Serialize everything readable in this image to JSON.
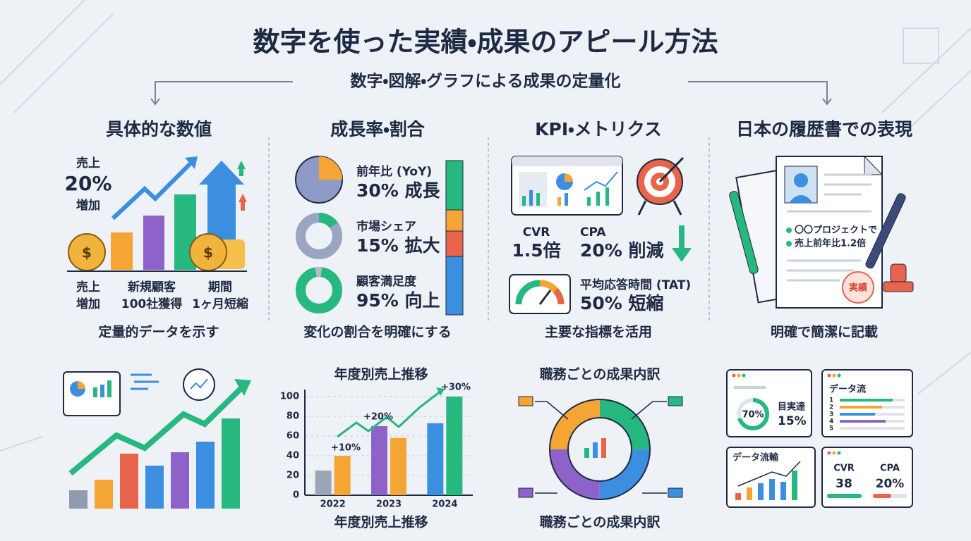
{
  "header": {
    "title": "数字を使った実績・成果のアピール方法",
    "subtitle": "数字・図解・グラフによる成果の定量化"
  },
  "sections": [
    {
      "title": "具体的な数値",
      "highlight": [
        "売上",
        "20%",
        "増加"
      ],
      "labels": [
        [
          "売上",
          "増加"
        ],
        [
          "新規顧客",
          "100社獲得"
        ],
        [
          "期間",
          "1ヶ月短縮"
        ]
      ],
      "caption": "定量的データを示す"
    },
    {
      "title": "成長率・割合",
      "items": [
        {
          "label": "前年比 (YoY)",
          "value": "30% 成長"
        },
        {
          "label": "市場シェア",
          "value": "15% 拡大"
        },
        {
          "label": "顧客満足度",
          "value": "95% 向上"
        }
      ],
      "caption": "変化の割合を明確にする"
    },
    {
      "title": "KPI・メトリクス",
      "metrics": [
        {
          "label": "CVR",
          "value": "1.5倍"
        },
        {
          "label": "CPA",
          "value": "20% 削減"
        },
        {
          "label": "平均応答時間 (TAT)",
          "value": "50% 短縮"
        }
      ],
      "caption": "主要な指標を活用"
    },
    {
      "title": "日本の履歴書での表現",
      "resume_lines": [
        "〇〇プロジェクトで",
        "売上前年比1.2倍"
      ],
      "stamp": "実績",
      "caption": "明確で簡潔に記載"
    }
  ],
  "sales_chart": {
    "type": "bar",
    "title": "年度別売上推移",
    "caption": "年度別売上推移",
    "categories": [
      "2022",
      "2023",
      "2024"
    ],
    "series": [
      {
        "values": [
          25,
          70,
          73
        ],
        "colors": [
          "#9aa5b8",
          "#8e63c9",
          "#3b8ee0"
        ]
      },
      {
        "values": [
          40,
          58,
          100
        ],
        "colors": [
          "#f5a534",
          "#f5a534",
          "#26b87f"
        ]
      }
    ],
    "ylim": [
      0,
      100
    ],
    "yticks": [
      0,
      20,
      40,
      60,
      80,
      100
    ],
    "grid": true,
    "annotations": [
      "+10%",
      "+20%",
      "+30%"
    ]
  },
  "breakdown": {
    "title": "職務ごとの成果内訳",
    "caption": "職務ごとの成果内訳"
  },
  "dashboard": {
    "gauge": "70%",
    "goal_label": "目実達",
    "goal_value": "15%",
    "panel2_title": "データ流",
    "rows": [
      "1",
      "2",
      "3",
      "4",
      "5"
    ],
    "panel3_title": "データ流輸",
    "kpis": [
      {
        "label": "CVR",
        "value": "38"
      },
      {
        "label": "CPA",
        "value": "20%"
      }
    ]
  }
}
